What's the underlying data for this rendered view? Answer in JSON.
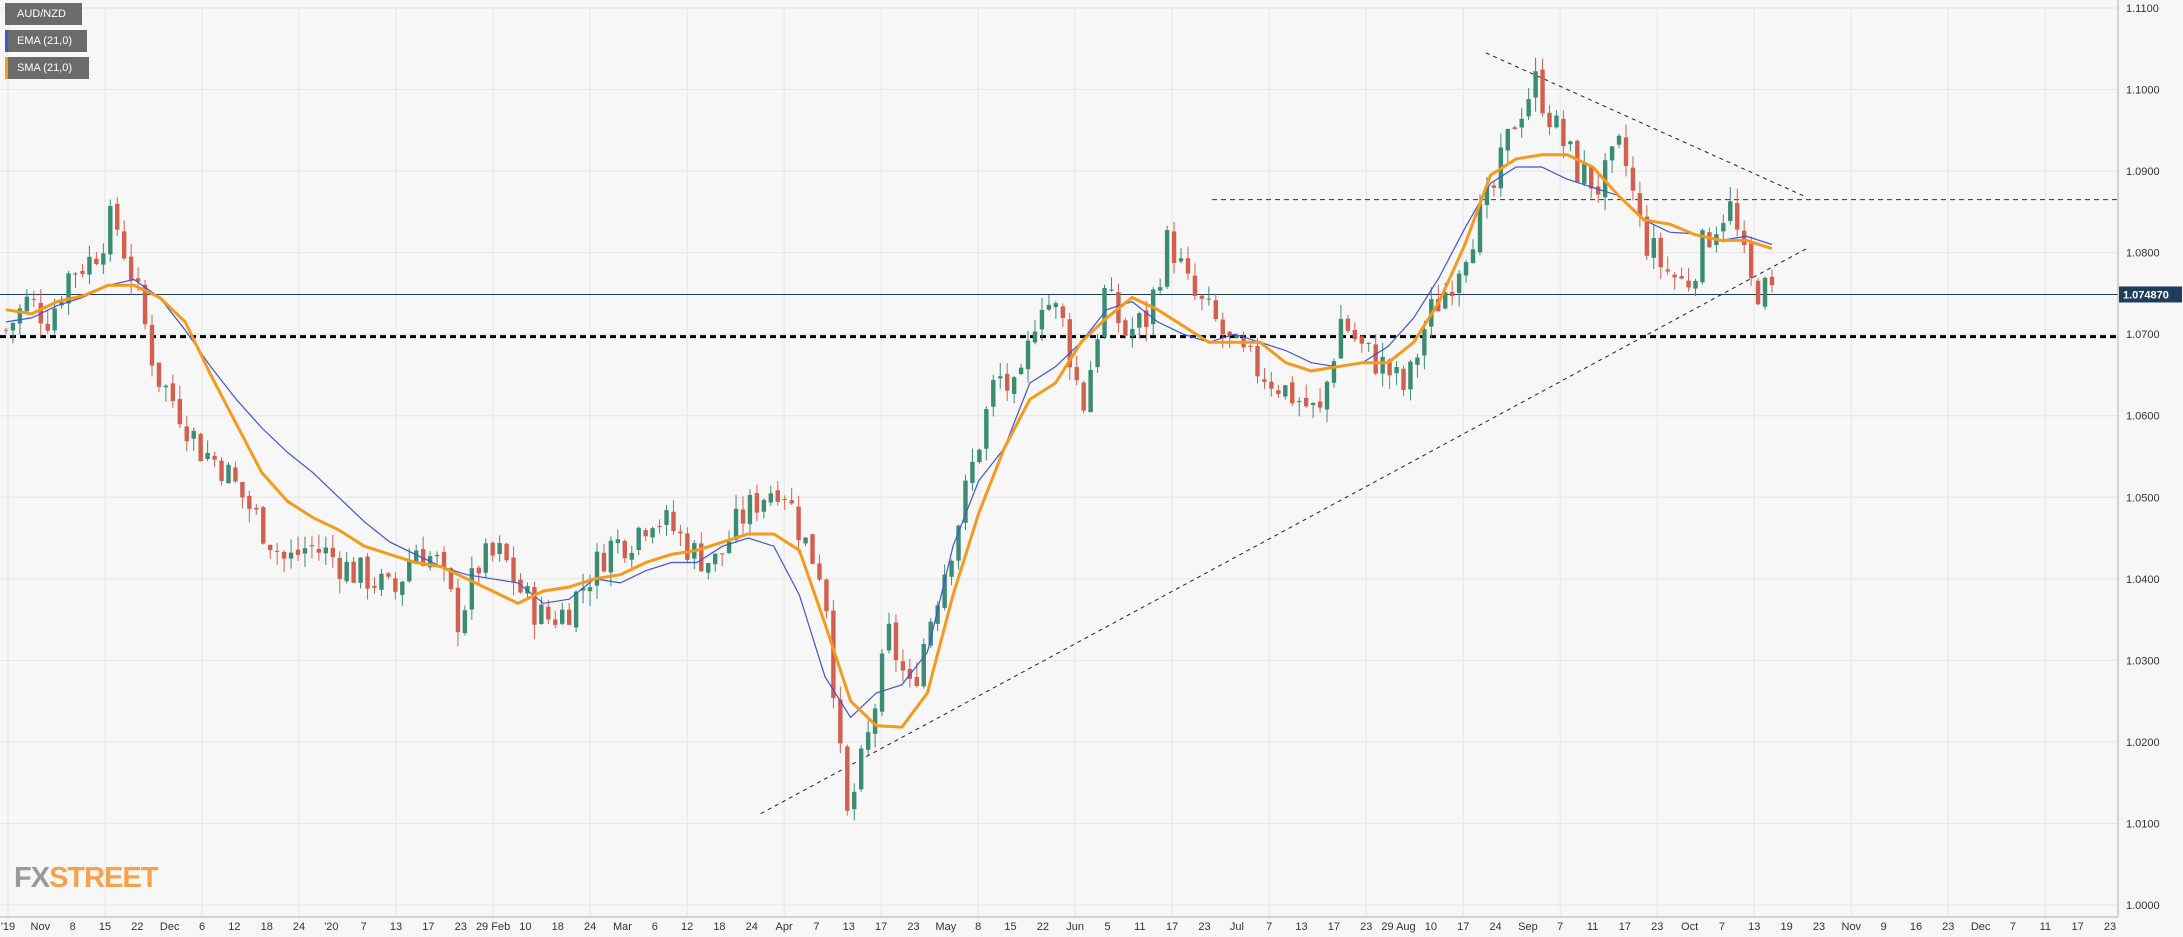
{
  "legend": {
    "symbol": "AUD/NZD",
    "ema_label": "EMA (21,0)",
    "sma_label": "SMA (21,0)"
  },
  "watermark": {
    "fx": "FX",
    "street": "STREET"
  },
  "colors": {
    "background": "#f7f7f7",
    "grid": "#e6e6e6",
    "bull": "#3a8c73",
    "bear": "#d3604f",
    "ema": "#3f55d6",
    "sma": "#f59a1e",
    "price_line": "#1e3d5c",
    "price_badge": "#1e3d5c",
    "axis_line": "#b0b0b0"
  },
  "chart_data": {
    "type": "candlestick",
    "title": "AUD/NZD",
    "y_range": [
      0.9985,
      1.1105
    ],
    "y_ticks": [
      "1.0000",
      "1.0100",
      "1.0200",
      "1.0300",
      "1.0400",
      "1.0500",
      "1.0600",
      "1.0700",
      "1.0800",
      "1.0900",
      "1.1000",
      "1.1100"
    ],
    "x_ticks": [
      "'19",
      "Nov",
      "8",
      "15",
      "22",
      "Dec",
      "6",
      "12",
      "18",
      "24",
      "'20",
      "7",
      "13",
      "17",
      "23",
      "29 Feb",
      "10",
      "18",
      "24",
      "Mar",
      "6",
      "12",
      "18",
      "24",
      "Apr",
      "7",
      "13",
      "17",
      "23",
      "May",
      "8",
      "15",
      "22",
      "Jun",
      "5",
      "11",
      "17",
      "23",
      "Jul",
      "7",
      "13",
      "17",
      "23",
      "29 Aug",
      "10",
      "17",
      "24",
      "Sep",
      "7",
      "11",
      "17",
      "23",
      "Oct",
      "7",
      "13",
      "19",
      "23",
      "Nov",
      "9",
      "16",
      "23",
      "Dec",
      "7",
      "11",
      "17",
      "23"
    ],
    "current_price": "1.074870",
    "current_price_value": 1.07487,
    "horizontal_support": 1.0697,
    "horizontal_resistance": 1.0865,
    "trendlines": [
      {
        "name": "ascending support",
        "from": [
          "2020-03-25",
          1.0112
        ],
        "to": [
          "2020-10-23",
          1.0805
        ]
      },
      {
        "name": "descending resistance",
        "from": [
          "2020-08-19",
          1.1045
        ],
        "to": [
          "2020-10-23",
          1.0868
        ]
      }
    ],
    "series": [
      {
        "name": "EMA (21,0)",
        "values": [
          1.0715,
          1.072,
          1.0735,
          1.0745,
          1.076,
          1.0767,
          1.0745,
          1.0705,
          1.066,
          1.062,
          1.0585,
          1.0555,
          1.053,
          1.05,
          1.047,
          1.0445,
          1.043,
          1.0415,
          1.0405,
          1.04,
          1.0395,
          1.037,
          1.0375,
          1.04,
          1.0395,
          1.041,
          1.042,
          1.042,
          1.044,
          1.045,
          1.044,
          1.038,
          1.028,
          1.023,
          1.026,
          1.027,
          1.031,
          1.044,
          1.052,
          1.056,
          1.064,
          1.066,
          1.069,
          1.073,
          1.074,
          1.0715,
          1.07,
          1.069,
          1.07,
          1.069,
          1.068,
          1.0665,
          1.066,
          1.0665,
          1.0685,
          1.072,
          1.077,
          1.083,
          1.0885,
          1.0905,
          1.0905,
          1.089,
          1.088,
          1.087,
          1.084,
          1.0825,
          1.0823,
          1.0815,
          1.082,
          1.081
        ]
      },
      {
        "name": "SMA (21,0)",
        "values": [
          1.073,
          1.0725,
          1.074,
          1.0747,
          1.076,
          1.076,
          1.0745,
          1.0715,
          1.065,
          1.059,
          1.053,
          1.0495,
          1.0475,
          1.046,
          1.044,
          1.043,
          1.042,
          1.0415,
          1.04,
          1.0385,
          1.037,
          1.0385,
          1.039,
          1.04,
          1.0405,
          1.042,
          1.043,
          1.0435,
          1.0445,
          1.0455,
          1.0455,
          1.0435,
          1.0345,
          1.025,
          1.022,
          1.0218,
          1.026,
          1.038,
          1.048,
          1.056,
          1.062,
          1.064,
          1.069,
          1.072,
          1.0745,
          1.073,
          1.071,
          1.069,
          1.069,
          1.069,
          1.0665,
          1.0655,
          1.066,
          1.0665,
          1.0665,
          1.069,
          1.074,
          1.081,
          1.0895,
          1.0915,
          1.092,
          1.092,
          1.0905,
          1.087,
          1.084,
          1.0835,
          1.0822,
          1.0815,
          1.0815,
          1.0805
        ]
      }
    ],
    "closes": [
      1.0705,
      1.074,
      1.072,
      1.0778,
      1.0792,
      1.0845,
      1.076,
      1.065,
      1.061,
      1.056,
      1.054,
      1.05,
      1.046,
      1.042,
      1.044,
      1.043,
      1.041,
      1.04,
      1.038,
      1.044,
      1.042,
      1.035,
      1.042,
      1.043,
      1.038,
      1.035,
      1.036,
      1.04,
      1.044,
      1.045,
      1.048,
      1.046,
      1.043,
      1.042,
      1.047,
      1.05,
      1.052,
      1.045,
      1.04,
      1.01,
      1.02,
      1.033,
      1.026,
      1.036,
      1.045,
      1.055,
      1.065,
      1.062,
      1.075,
      1.072,
      1.061,
      1.075,
      1.07,
      1.072,
      1.082,
      1.075,
      1.072,
      1.068,
      1.066,
      1.064,
      1.062,
      1.06,
      1.072,
      1.068,
      1.066,
      1.063,
      1.072,
      1.076,
      1.082,
      1.087,
      1.096,
      1.101,
      1.095,
      1.09,
      1.088,
      1.093,
      1.082,
      1.078,
      1.076,
      1.082,
      1.086,
      1.076,
      1.0748
    ],
    "note_on_candles": "daily OHLC candles from late Oct 2019 to 16 Oct 2020; closes sampled and expanded into daily candles by the drawing script"
  }
}
